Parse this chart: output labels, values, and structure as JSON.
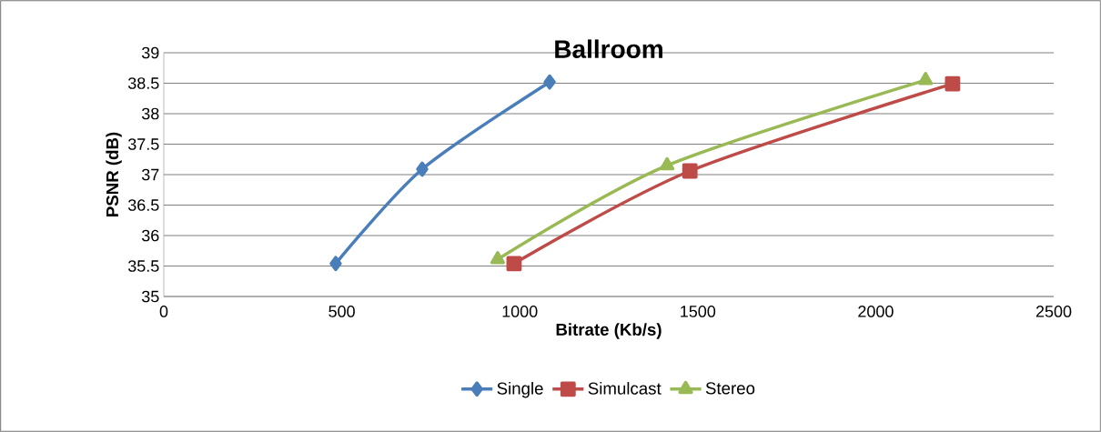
{
  "chart_data": {
    "type": "line",
    "title": "Ballroom",
    "xlabel": "Bitrate (Kb/s)",
    "ylabel": "PSNR (dB)",
    "xlim": [
      0,
      2500
    ],
    "xticks": [
      0,
      500,
      1000,
      1500,
      2000,
      2500
    ],
    "ylim": [
      35,
      39
    ],
    "yticks": [
      35,
      35.5,
      36,
      36.5,
      37,
      37.5,
      38,
      38.5,
      39
    ],
    "grid": "y",
    "legend": "bottom",
    "line_style": "solid",
    "series": [
      {
        "name": "Single",
        "color": "#4a7ebb",
        "marker": "diamond",
        "x": [
          483,
          726,
          1084
        ],
        "values": [
          35.54,
          37.09,
          38.52
        ]
      },
      {
        "name": "Simulcast",
        "color": "#be4b48",
        "marker": "square",
        "x": [
          984,
          1478,
          2216
        ],
        "values": [
          35.54,
          37.06,
          38.49
        ]
      },
      {
        "name": "Stereo",
        "color": "#98b954",
        "marker": "triangle",
        "x": [
          938,
          1414,
          2140
        ],
        "values": [
          35.61,
          37.15,
          38.55
        ]
      }
    ]
  }
}
